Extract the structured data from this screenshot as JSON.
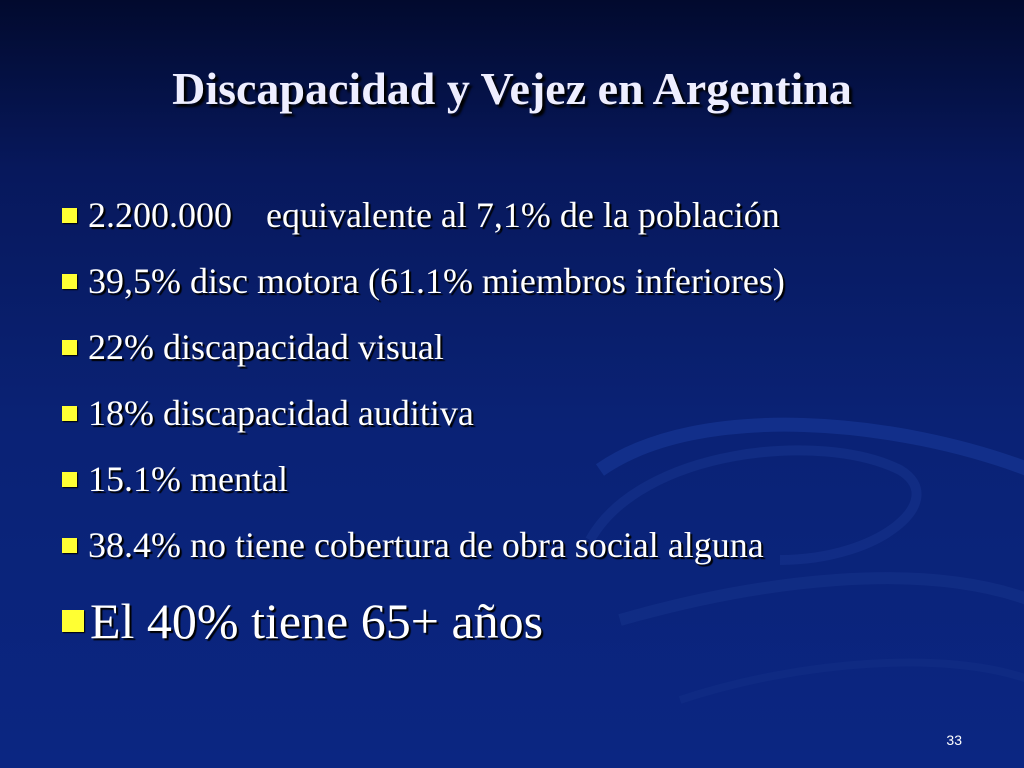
{
  "slide": {
    "title": "Discapacidad y Vejez en Argentina",
    "bullets": [
      {
        "lead": "2.200.000",
        "rest": "equivalente al 7,1% de la población"
      },
      {
        "text": "39,5% disc motora (61.1% miembros inferiores)"
      },
      {
        "text": "22% discapacidad visual"
      },
      {
        "text": "18% discapacidad auditiva"
      },
      {
        "text": "15.1% mental"
      },
      {
        "text": "38.4% no tiene cobertura de obra social alguna"
      },
      {
        "text": "El 40% tiene 65+ años"
      }
    ],
    "page_number": "33"
  },
  "colors": {
    "background": "#0a2275",
    "bullet_marker": "#ffff33",
    "text": "#ffffff"
  }
}
